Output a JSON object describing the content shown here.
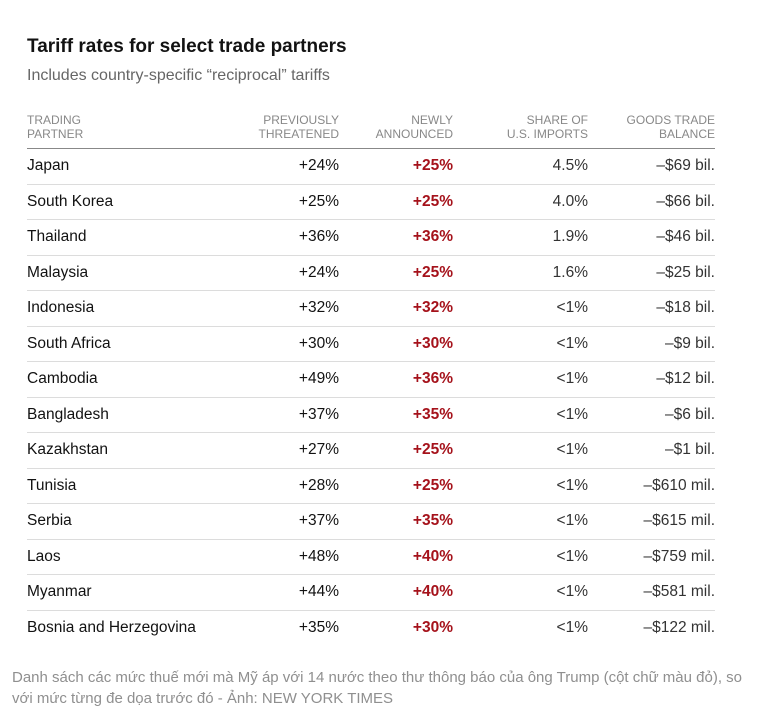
{
  "header": {
    "title": "Tariff rates for select trade partners",
    "subtitle": "Includes country-specific “reciprocal” tariffs"
  },
  "columns": {
    "partner": [
      "TRADING",
      "PARTNER"
    ],
    "previously": [
      "PREVIOUSLY",
      "THREATENED"
    ],
    "newly": [
      "NEWLY",
      "ANNOUNCED"
    ],
    "share": [
      "SHARE OF",
      "U.S. IMPORTS"
    ],
    "balance": [
      "GOODS TRADE",
      "BALANCE"
    ]
  },
  "chart_data": {
    "type": "table",
    "title": "Tariff rates for select trade partners",
    "subtitle": "Includes country-specific “reciprocal” tariffs",
    "headers": [
      "TRADING PARTNER",
      "PREVIOUSLY THREATENED",
      "NEWLY ANNOUNCED",
      "SHARE OF U.S. IMPORTS",
      "GOODS TRADE BALANCE"
    ],
    "rows": [
      [
        "Japan",
        "+24%",
        "+25%",
        "4.5%",
        "–$69 bil."
      ],
      [
        "South Korea",
        "+25%",
        "+25%",
        "4.0%",
        "–$66 bil."
      ],
      [
        "Thailand",
        "+36%",
        "+36%",
        "1.9%",
        "–$46 bil."
      ],
      [
        "Malaysia",
        "+24%",
        "+25%",
        "1.6%",
        "–$25 bil."
      ],
      [
        "Indonesia",
        "+32%",
        "+32%",
        "<1%",
        "–$18 bil."
      ],
      [
        "South Africa",
        "+30%",
        "+30%",
        "<1%",
        "–$9 bil."
      ],
      [
        "Cambodia",
        "+49%",
        "+36%",
        "<1%",
        "–$12 bil."
      ],
      [
        "Bangladesh",
        "+37%",
        "+35%",
        "<1%",
        "–$6 bil."
      ],
      [
        "Kazakhstan",
        "+27%",
        "+25%",
        "<1%",
        "–$1 bil."
      ],
      [
        "Tunisia",
        "+28%",
        "+25%",
        "<1%",
        "–$610 mil."
      ],
      [
        "Serbia",
        "+37%",
        "+35%",
        "<1%",
        "–$615 mil."
      ],
      [
        "Laos",
        "+48%",
        "+40%",
        "<1%",
        "–$759 mil."
      ],
      [
        "Myanmar",
        "+44%",
        "+40%",
        "<1%",
        "–$581 mil."
      ],
      [
        "Bosnia and Herzegovina",
        "+35%",
        "+30%",
        "<1%",
        "–$122 mil."
      ]
    ],
    "highlight_color": "#a5121b"
  },
  "caption": "Danh sách các mức thuế mới mà Mỹ áp với 14 nước theo thư thông báo của ông Trump (cột chữ màu đỏ), so với mức từng đe dọa trước đó - Ảnh: NEW YORK TIMES"
}
